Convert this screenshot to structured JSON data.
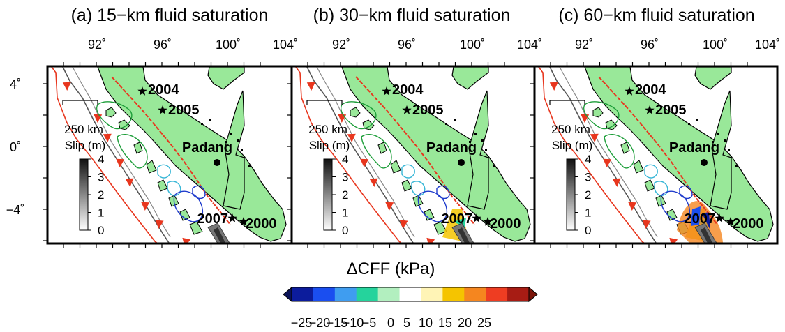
{
  "panels": [
    {
      "title": "(a) 15−km fluid saturation"
    },
    {
      "title": "(b) 30−km fluid saturation"
    },
    {
      "title": "(c) 60−km fluid saturation"
    }
  ],
  "lon_ticks": [
    "92˚",
    "96˚",
    "100˚",
    "104˚"
  ],
  "lat_ticks": [
    "4˚",
    "0˚",
    "−4˚"
  ],
  "scale_bar_label": "250 km",
  "slip_legend": {
    "title": "Slip (m)",
    "ticks": [
      "4",
      "3",
      "2",
      "1",
      "0"
    ]
  },
  "events": [
    "2004",
    "2005",
    "2007",
    "2000"
  ],
  "city": "Padang",
  "colorbar": {
    "title": "ΔCFF (kPa)",
    "ticks": [
      "−25",
      "−20",
      "−15",
      "−10",
      "−5",
      "0",
      "5",
      "10",
      "15",
      "20",
      "25"
    ],
    "colors": [
      "#0c1c9c",
      "#1a4ef0",
      "#3f9df0",
      "#25d39c",
      "#b2efbf",
      "#ffffff",
      "#fff4b6",
      "#f5c400",
      "#f5861f",
      "#ee3d22",
      "#a71c14"
    ],
    "arrow_colors": [
      "#0a1257",
      "#7a1408"
    ]
  },
  "colors": {
    "land": "#99e899",
    "trench": "#e8361e",
    "fault": "#e8361e",
    "slip_contour_2004": "#1e9e3a",
    "slip_contour_2007": "#37b6d6",
    "slip_contour_2000": "#1f3bcc"
  }
}
